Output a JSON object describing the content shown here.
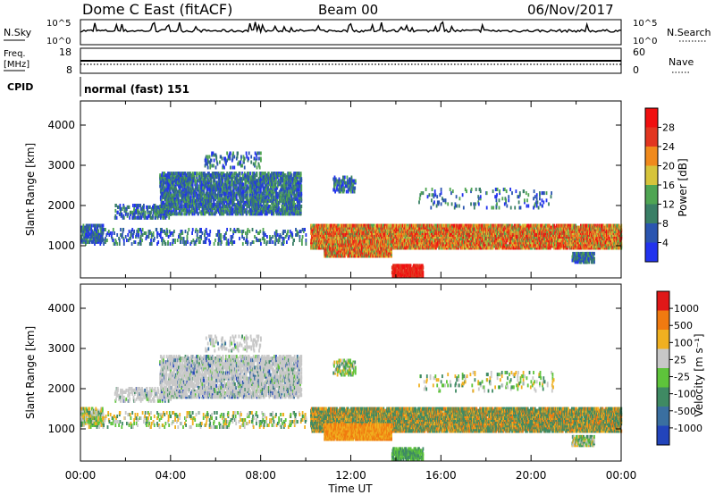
{
  "header": {
    "station": "Dome C East (fitACF)",
    "beam": "Beam 00",
    "date": "06/Nov/2017"
  },
  "strips": {
    "nsky": {
      "left_label": "N.Sky",
      "right_label": "N.Search",
      "left_ticks": [
        "10^5",
        "10^0"
      ],
      "right_ticks": [
        "10^5",
        "10^0"
      ]
    },
    "freq": {
      "left_label_1": "Freq.",
      "left_label_2": "[MHz]",
      "right_label": "Nave",
      "left_ticks": [
        "18",
        "8"
      ],
      "right_ticks": [
        "60",
        "0"
      ]
    },
    "cpid": {
      "label": "CPID",
      "mode_text": "normal (fast) 151"
    }
  },
  "chart_data": [
    {
      "type": "heatmap",
      "name": "power",
      "ylabel": "Slant Range [km]",
      "yticks": [
        "4000",
        "3000",
        "2000",
        "1000"
      ],
      "ylim": [
        200,
        4600
      ],
      "xlim": [
        0,
        24
      ],
      "colorbar_label": "Power [dB]",
      "colorbar_ticks": [
        "28",
        "24",
        "20",
        "16",
        "12",
        "8",
        "4"
      ],
      "colors": [
        "#2233ee",
        "#2b55b0",
        "#3a7f66",
        "#4fa553",
        "#d6c43b",
        "#f08a1c",
        "#e23620",
        "#f01010"
      ]
    },
    {
      "type": "heatmap",
      "name": "velocity",
      "ylabel": "Slant Range [km]",
      "yticks": [
        "4000",
        "3000",
        "2000",
        "1000"
      ],
      "ylim": [
        200,
        4600
      ],
      "xlim": [
        0,
        24
      ],
      "colorbar_label": "Velocity [m s⁻¹]",
      "colorbar_ticks": [
        "1000",
        "500",
        "100",
        "25",
        "-25",
        "-100",
        "-500",
        "-1000"
      ],
      "colors": [
        "#2244bb",
        "#3a6fa0",
        "#3f8a63",
        "#5ec43b",
        "#c8c8c8",
        "#f0b020",
        "#f07a10",
        "#e01818"
      ]
    }
  ],
  "xaxis": {
    "ticks": [
      "00:00",
      "04:00",
      "08:00",
      "12:00",
      "16:00",
      "20:00",
      "00:00"
    ],
    "label": "Time UT"
  }
}
